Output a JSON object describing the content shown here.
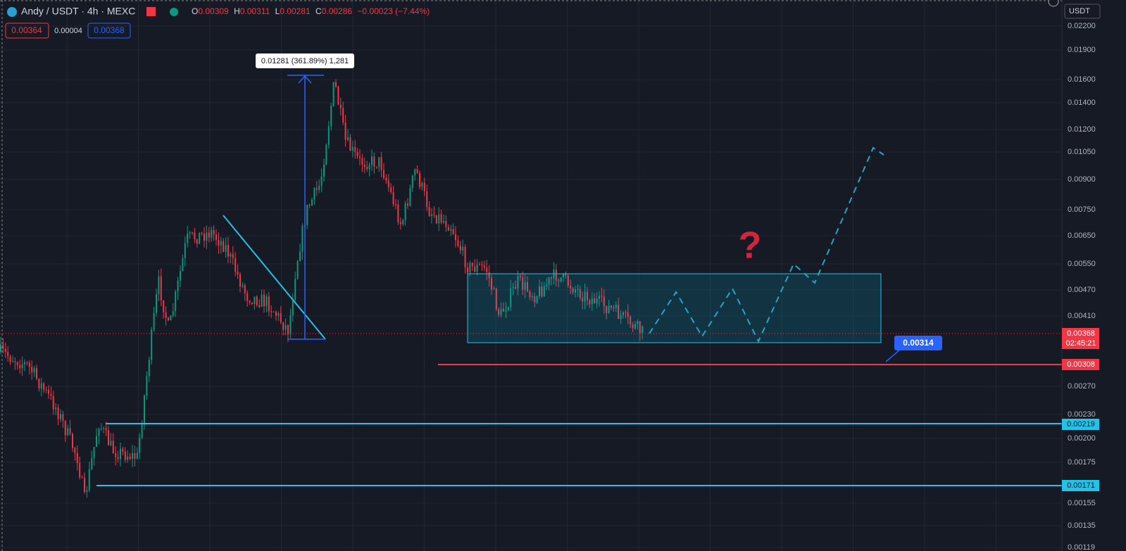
{
  "header": {
    "symbol": "Andy / USDT · 4h · MEXC",
    "o_label": "O",
    "open": "0.00309",
    "h_label": "H",
    "high": "0.00311",
    "l_label": "L",
    "low": "0.00281",
    "c_label": "C",
    "close": "0.00286",
    "change": "−0.00023 (−7.44%)"
  },
  "order": {
    "sell": "0.00364",
    "spread": "0.00004",
    "buy": "0.00368"
  },
  "currency": "USDT",
  "price_axis": [
    "0.02200",
    "0.01900",
    "0.01600",
    "0.01400",
    "0.01200",
    "0.01050",
    "0.00900",
    "0.00750",
    "0.00650",
    "0.00550",
    "0.00470",
    "0.00410",
    "0.00270",
    "0.00230",
    "0.00200",
    "0.00175",
    "0.00155",
    "0.00135",
    "0.00119"
  ],
  "badges": {
    "last_price": "0.00368",
    "countdown": "02:45:21",
    "support_red": "0.00308",
    "support_cyan_1": "0.00219",
    "support_cyan_2": "0.00171"
  },
  "annotations": {
    "measure": "0.01281 (361.89%) 1,281",
    "callout": "0.00314",
    "question": "?"
  }
}
